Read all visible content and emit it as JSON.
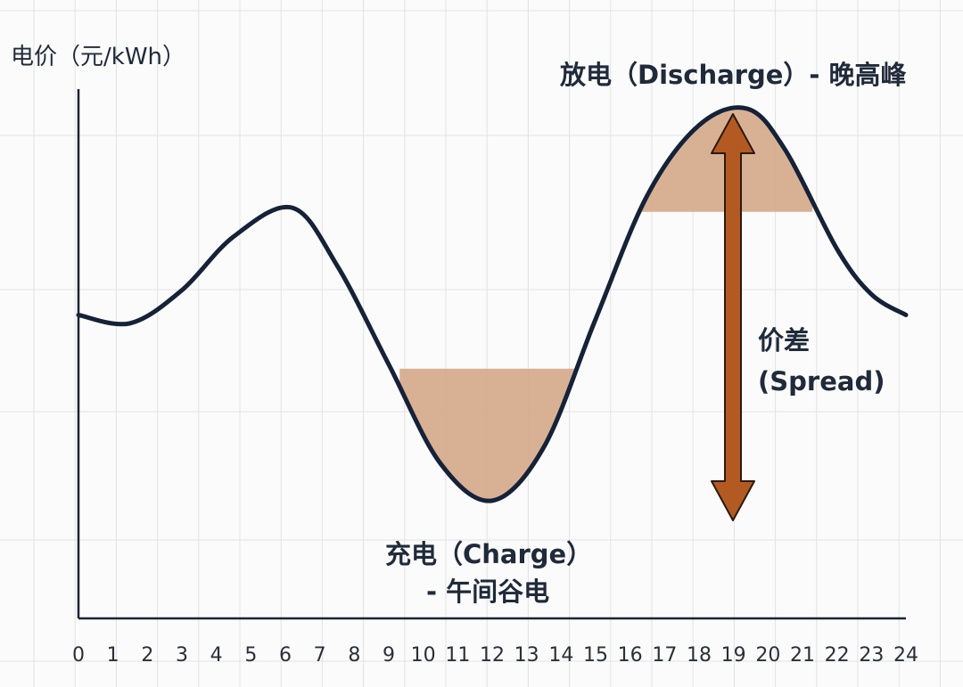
{
  "chart_data": {
    "type": "line",
    "ylabel": "电价（元/kWh）",
    "xlabel": "",
    "x_ticks": [
      "0",
      "1",
      "2",
      "3",
      "4",
      "5",
      "6",
      "7",
      "8",
      "9",
      "10",
      "11",
      "12",
      "13",
      "14",
      "15",
      "16",
      "17",
      "18",
      "19",
      "20",
      "21",
      "22",
      "23",
      "24"
    ],
    "xlim": [
      0,
      24
    ],
    "grid": true,
    "series": [
      {
        "x": [
          0,
          1.5,
          3,
          4.5,
          6.2,
          7.5,
          9,
          10.5,
          12,
          13.5,
          15,
          16.5,
          18,
          19.4,
          20.5,
          22,
          23,
          24
        ],
        "y": [
          0.5,
          0.48,
          0.56,
          0.69,
          0.76,
          0.62,
          0.38,
          0.14,
          0.05,
          0.18,
          0.49,
          0.79,
          0.96,
          1.0,
          0.9,
          0.66,
          0.55,
          0.5
        ]
      }
    ],
    "shaded_regions": [
      {
        "x_start": 9.3,
        "x_end": 14.5,
        "y_threshold": 0.37,
        "side": "below"
      },
      {
        "x_start": 16.0,
        "x_end": 21.3,
        "y_threshold": 0.75,
        "side": "above"
      }
    ],
    "annotations": {
      "discharge": "放电（Discharge）- 晚高峰",
      "charge_line1": "充电（Charge）",
      "charge_line2": "- 午间谷电",
      "spread_line1": "价差",
      "spread_line2": "(Spread)"
    },
    "colors": {
      "line": "#152238",
      "fill": "#d4a88a",
      "arrow": "#b35a22",
      "grid": "#e3e3e3"
    }
  }
}
